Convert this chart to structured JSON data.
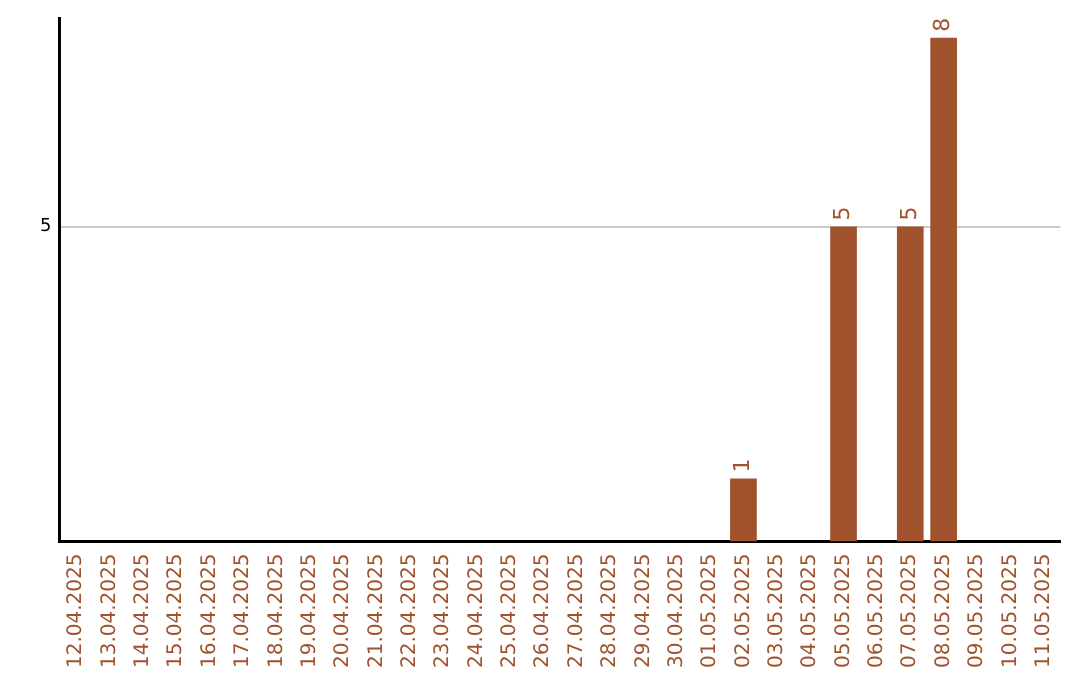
{
  "chart_data": {
    "type": "bar",
    "categories": [
      "12.04.2025",
      "13.04.2025",
      "14.04.2025",
      "15.04.2025",
      "16.04.2025",
      "17.04.2025",
      "18.04.2025",
      "19.04.2025",
      "20.04.2025",
      "21.04.2025",
      "22.04.2025",
      "23.04.2025",
      "24.04.2025",
      "25.04.2025",
      "26.04.2025",
      "27.04.2025",
      "28.04.2025",
      "29.04.2025",
      "30.04.2025",
      "01.05.2025",
      "02.05.2025",
      "03.05.2025",
      "04.05.2025",
      "05.05.2025",
      "06.05.2025",
      "07.05.2025",
      "08.05.2025",
      "09.05.2025",
      "10.05.2025",
      "11.05.2025"
    ],
    "values": [
      null,
      null,
      null,
      null,
      null,
      null,
      null,
      null,
      null,
      null,
      null,
      null,
      null,
      null,
      null,
      null,
      null,
      null,
      null,
      null,
      1,
      null,
      null,
      5,
      null,
      5,
      8,
      null,
      null,
      null
    ],
    "color": "#a0522d",
    "ylim": [
      0,
      8.3
    ],
    "yticks": [
      5
    ],
    "grid": "y",
    "legend": false,
    "data_labels": true
  }
}
